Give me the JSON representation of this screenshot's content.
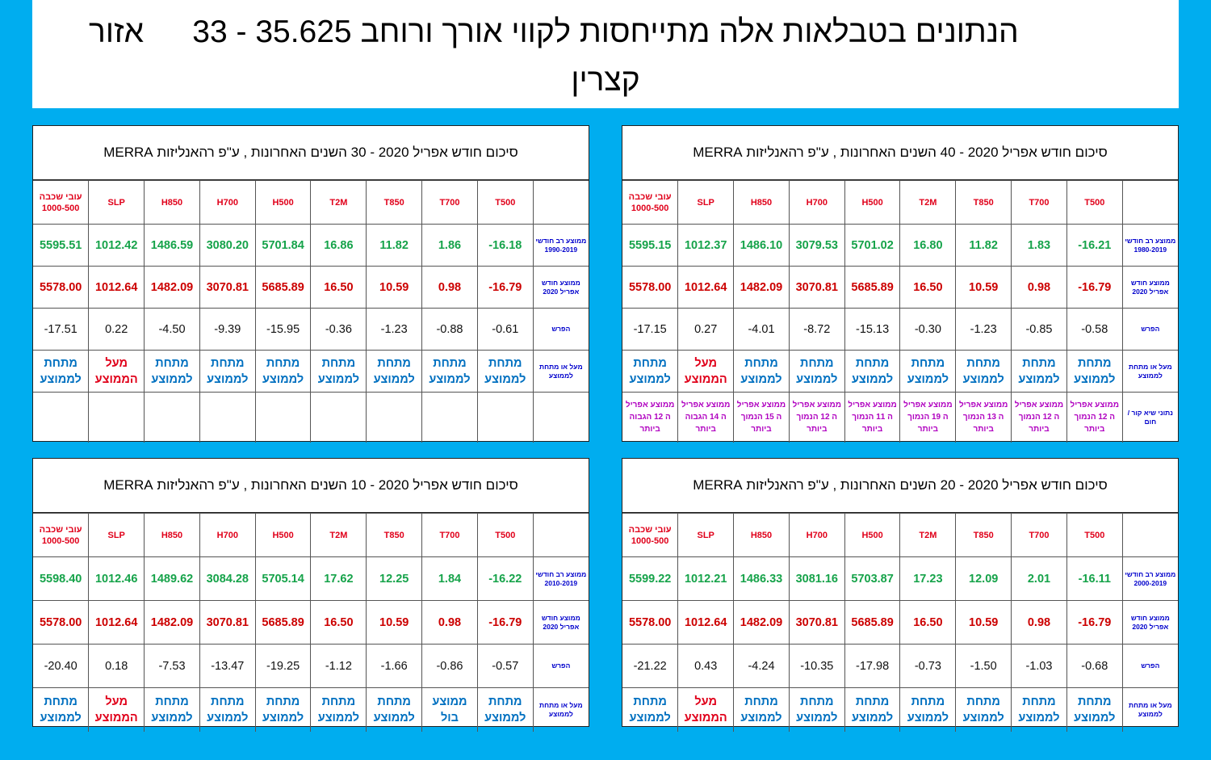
{
  "header": {
    "line1": "הנתונים בטבלאות אלה מתייחסות לקווי אורך ורוחב 35.625 - 33",
    "area_label": "אזור",
    "line2": "קצרין"
  },
  "colors": {
    "background": "#00adef",
    "header_red": "#e0001a",
    "avg_green": "#16a34a",
    "current_red": "#cc0000",
    "below_blue": "#0070c0",
    "record_purple": "#b000c0",
    "row_label_blue": "#0000cc"
  },
  "columns": {
    "thickness": "עובי שכבה 1000-500",
    "slp": "SLP",
    "h850": "H850",
    "h700": "H700",
    "h500": "H500",
    "t2m": "T2M",
    "t850": "T850",
    "t700": "T700",
    "t500": "T500"
  },
  "row_labels": {
    "current": "ממוצע חודש אפריל 2020",
    "diff": "הפרש",
    "status": "מעל או מתחת לממוצע",
    "records": "נתוני שיא קור / חום"
  },
  "status_text": {
    "below": "מתחת לממוצע",
    "above": "מעל הממוצע",
    "avg": "ממוצע בול"
  },
  "panels": {
    "p40": {
      "title": "סיכום חודש אפריל 2020  -  40 השנים האחרונות  , ע\"פ רהאנליזות MERRA",
      "avg_label": "ממוצע רב חודשי 1980-2019",
      "avg": [
        "5595.15",
        "1012.37",
        "1486.10",
        "3079.53",
        "5701.02",
        "16.80",
        "11.82",
        "1.83",
        "-16.21"
      ],
      "current": [
        "5578.00",
        "1012.64",
        "1482.09",
        "3070.81",
        "5685.89",
        "16.50",
        "10.59",
        "0.98",
        "-16.79"
      ],
      "diff": [
        "-17.15",
        "0.27",
        "-4.01",
        "-8.72",
        "-15.13",
        "-0.30",
        "-1.23",
        "-0.85",
        "-0.58"
      ],
      "records": [
        "ממוצע אפריל ה 12 הגבוה ביותר",
        "ממוצע אפריל ה 14 הגבוה ביותר",
        "ממוצע אפריל ה 15 הנמוך ביותר",
        "ממוצע אפריל ה 12 הנמוך ביותר",
        "ממוצע אפריל ה 11 הנמוך ביותר",
        "ממוצע אפריל ה 19 הנמוך ביותר",
        "ממוצע אפריל ה 13 הנמוך ביותר",
        "ממוצע אפריל ה 12 הנמוך ביותר",
        "ממוצע אפריל ה 12 הנמוך ביותר"
      ]
    },
    "p30": {
      "title": "סיכום חודש אפריל 2020  -  30 השנים האחרונות  , ע\"פ רהאנליזות MERRA",
      "avg_label": "ממוצע רב חודשי 1990-2019",
      "avg": [
        "5595.51",
        "1012.42",
        "1486.59",
        "3080.20",
        "5701.84",
        "16.86",
        "11.82",
        "1.86",
        "-16.18"
      ],
      "current": [
        "5578.00",
        "1012.64",
        "1482.09",
        "3070.81",
        "5685.89",
        "16.50",
        "10.59",
        "0.98",
        "-16.79"
      ],
      "diff": [
        "-17.51",
        "0.22",
        "-4.50",
        "-9.39",
        "-15.95",
        "-0.36",
        "-1.23",
        "-0.88",
        "-0.61"
      ]
    },
    "p20": {
      "title": "סיכום חודש אפריל 2020  -  20 השנים האחרונות  , ע\"פ רהאנליזות MERRA",
      "avg_label": "ממוצע רב חודשי 2000-2019",
      "avg": [
        "5599.22",
        "1012.21",
        "1486.33",
        "3081.16",
        "5703.87",
        "17.23",
        "12.09",
        "2.01",
        "-16.11"
      ],
      "current": [
        "5578.00",
        "1012.64",
        "1482.09",
        "3070.81",
        "5685.89",
        "16.50",
        "10.59",
        "0.98",
        "-16.79"
      ],
      "diff": [
        "-21.22",
        "0.43",
        "-4.24",
        "-10.35",
        "-17.98",
        "-0.73",
        "-1.50",
        "-1.03",
        "-0.68"
      ]
    },
    "p10": {
      "title": "סיכום חודש אפריל 2020  -  10 השנים האחרונות  , ע\"פ רהאנליזות MERRA",
      "avg_label": "ממוצע רב חודשי 2010-2019",
      "avg": [
        "5598.40",
        "1012.46",
        "1489.62",
        "3084.28",
        "5705.14",
        "17.62",
        "12.25",
        "1.84",
        "-16.22"
      ],
      "current": [
        "5578.00",
        "1012.64",
        "1482.09",
        "3070.81",
        "5685.89",
        "16.50",
        "10.59",
        "0.98",
        "-16.79"
      ],
      "diff": [
        "-20.40",
        "0.18",
        "-7.53",
        "-13.47",
        "-19.25",
        "-1.12",
        "-1.66",
        "-0.86",
        "-0.57"
      ]
    }
  }
}
